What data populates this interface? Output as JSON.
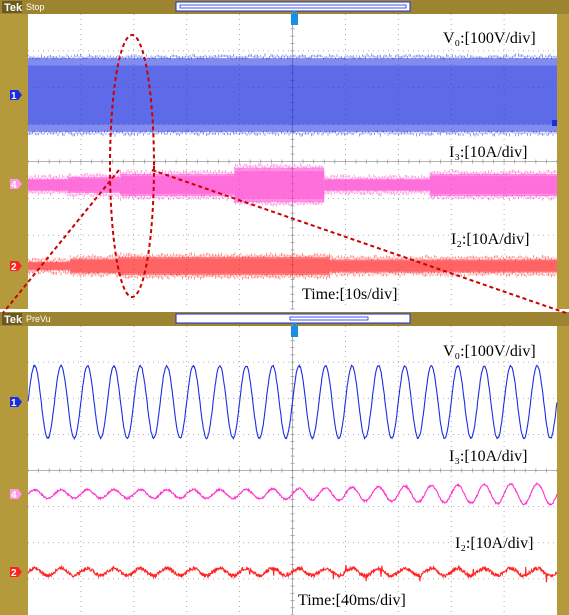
{
  "screens": [
    {
      "brand": "Tek",
      "mode": "Stop",
      "labels": {
        "ch1": "V₀:[100V/div]",
        "ch4": "I₃:[10A/div]",
        "ch2": "I₂:[10A/div]",
        "time": "Time:[10s/div]"
      }
    },
    {
      "brand": "Tek",
      "mode": "PreVu",
      "labels": {
        "ch1": "V₀:[100V/div]",
        "ch4": "I₃:[10A/div]",
        "ch2": "I₂:[10A/div]",
        "time": "Time:[40ms/div]"
      }
    }
  ],
  "channel_markers": [
    "1",
    "4",
    "2"
  ],
  "colors": {
    "ch1": "#1a2ee0",
    "ch4": "#ff33cc",
    "ch2": "#ff2222",
    "bezel": "#b59a3c",
    "grid": "#9a9a9a",
    "zoom": "#cc0000"
  },
  "chart_data": [
    {
      "type": "line",
      "title": "",
      "xlabel": "Time:[10s/div]",
      "x_divisions": 10,
      "x_range_s": [
        0,
        100
      ],
      "grid": true,
      "series": [
        {
          "channel": "1",
          "label": "V₀:[100V/div]",
          "segments": [
            {
              "start_div": 0,
              "end_div": 10,
              "amplitude_div": 1.0
            }
          ]
        },
        {
          "channel": "4",
          "label": "I₃:[10A/div]",
          "segments": [
            {
              "start_div": 0,
              "end_div": 0.75,
              "amplitude_div": 0.17
            },
            {
              "start_div": 0.75,
              "end_div": 1.75,
              "amplitude_div": 0.22
            },
            {
              "start_div": 1.75,
              "end_div": 3.9,
              "amplitude_div": 0.3
            },
            {
              "start_div": 3.9,
              "end_div": 5.6,
              "amplitude_div": 0.47
            },
            {
              "start_div": 5.6,
              "end_div": 7.6,
              "amplitude_div": 0.17
            },
            {
              "start_div": 7.6,
              "end_div": 10,
              "amplitude_div": 0.3
            }
          ]
        },
        {
          "channel": "2",
          "label": "I₂:[10A/div]",
          "segments": [
            {
              "start_div": 0,
              "end_div": 0.8,
              "amplitude_div": 0.12
            },
            {
              "start_div": 0.8,
              "end_div": 1.7,
              "amplitude_div": 0.2
            },
            {
              "start_div": 1.7,
              "end_div": 5.7,
              "amplitude_div": 0.25
            },
            {
              "start_div": 5.7,
              "end_div": 10,
              "amplitude_div": 0.18
            }
          ]
        }
      ]
    },
    {
      "type": "line",
      "title": "",
      "xlabel": "Time:[40ms/div]",
      "x_divisions": 10,
      "x_range_ms": [
        0,
        400
      ],
      "grid": true,
      "series": [
        {
          "channel": "1",
          "label": "V₀:[100V/div]",
          "frequency_hz": 50,
          "amplitude_div": 1.0
        },
        {
          "channel": "4",
          "label": "I₃:[10A/div]",
          "frequency_hz": 50,
          "amplitude_div_start": 0.12,
          "amplitude_div_end": 0.3
        },
        {
          "channel": "2",
          "label": "I₂:[10A/div]",
          "frequency_hz": 50,
          "amplitude_div": 0.1
        }
      ]
    }
  ]
}
